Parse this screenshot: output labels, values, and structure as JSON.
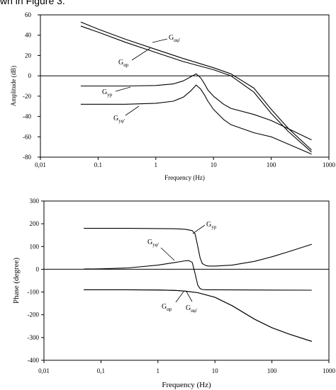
{
  "caption": "wn in Figure 3.",
  "chart_data": [
    {
      "type": "line",
      "title": "",
      "xlabel": "Frequency (Hz)",
      "ylabel": "Amplitude (dB)",
      "xscale": "log",
      "xlim": [
        0.01,
        1000
      ],
      "ylim": [
        -80,
        60
      ],
      "xticks": [
        "0,01",
        "0.1",
        "1",
        "10",
        "100",
        "1000"
      ],
      "yticks": [
        "60",
        "40",
        "20",
        "0",
        "-20",
        "-40",
        "-60",
        "-80"
      ],
      "grid": false,
      "series": [
        {
          "name": "Gαφ'",
          "annotation_main": "G",
          "annotation_sub": "αφ'",
          "x": [
            0.05,
            0.1,
            0.3,
            1,
            3,
            10,
            20,
            50,
            100,
            200,
            500
          ],
          "y": [
            53,
            46,
            36,
            26,
            17,
            8,
            2,
            -12,
            -33,
            -52,
            -73
          ]
        },
        {
          "name": "Gαp",
          "annotation_main": "G",
          "annotation_sub": "αp",
          "x": [
            0.05,
            0.1,
            0.3,
            1,
            3,
            10,
            20,
            50,
            100,
            200,
            500
          ],
          "y": [
            49,
            43,
            33,
            23,
            14,
            6,
            0,
            -16,
            -37,
            -55,
            -75
          ]
        },
        {
          "name": "Gyp",
          "annotation_main": "G",
          "annotation_sub": "yp",
          "x": [
            0.05,
            0.3,
            1,
            2,
            3,
            4,
            5,
            6,
            7,
            8,
            10,
            15,
            20,
            50,
            100,
            500
          ],
          "y": [
            -10,
            -10,
            -9.5,
            -8,
            -5,
            -1,
            2,
            -2,
            -8,
            -14,
            -20,
            -28,
            -32,
            -38,
            -44,
            -63
          ]
        },
        {
          "name": "Gyφ'",
          "annotation_main": "G",
          "annotation_sub": "yφ'",
          "x": [
            0.05,
            0.3,
            1,
            2,
            3,
            4,
            5,
            6,
            7,
            8,
            10,
            15,
            20,
            50,
            100,
            500
          ],
          "y": [
            -28,
            -28,
            -27,
            -25,
            -21,
            -15,
            -9,
            -13,
            -19,
            -25,
            -33,
            -43,
            -48,
            -56,
            -60,
            -77
          ]
        }
      ]
    },
    {
      "type": "line",
      "title": "",
      "xlabel": "Frequency (Hz)",
      "ylabel": "Phase (degree)",
      "xscale": "log",
      "xlim": [
        0.01,
        1000
      ],
      "ylim": [
        -400,
        300
      ],
      "xticks": [
        "0,01",
        "0,1",
        "1",
        "10",
        "100",
        "1000"
      ],
      "yticks": [
        "300",
        "200",
        "100",
        "0",
        "-100",
        "-200",
        "-300",
        "-400"
      ],
      "grid": false,
      "series": [
        {
          "name": "Gyp",
          "annotation_main": "G",
          "annotation_sub": "yp",
          "x": [
            0.05,
            0.3,
            1,
            2,
            3,
            4,
            4.5,
            5,
            5.5,
            6,
            7,
            8,
            10,
            20,
            50,
            100,
            200,
            500
          ],
          "y": [
            180,
            180,
            179,
            178,
            176,
            170,
            155,
            100,
            50,
            25,
            16,
            14,
            14,
            18,
            35,
            55,
            78,
            110
          ]
        },
        {
          "name": "Gyφ'",
          "annotation_main": "G",
          "annotation_sub": "yφ'",
          "x": [
            0.05,
            0.1,
            0.3,
            1,
            2,
            3,
            3.5,
            4,
            4.5,
            5,
            5.5,
            6,
            7,
            10,
            50,
            500
          ],
          "y": [
            1,
            2,
            6,
            18,
            30,
            37,
            38,
            30,
            -20,
            -70,
            -85,
            -89,
            -90,
            -90,
            -91,
            -92
          ]
        },
        {
          "name": "Gαp",
          "annotation_main": "G",
          "annotation_sub": "αp",
          "x": [
            0.05,
            0.3,
            1,
            2,
            3,
            5,
            10,
            20,
            50,
            100,
            200,
            500
          ],
          "y": [
            -90,
            -90,
            -91,
            -93,
            -96,
            -103,
            -123,
            -160,
            -220,
            -257,
            -285,
            -317
          ]
        },
        {
          "name": "Gαφ'",
          "annotation_main": "G",
          "annotation_sub": "αφ'",
          "x": [
            0.05,
            0.3,
            1,
            2,
            3,
            5,
            10,
            20,
            50,
            100,
            200,
            500
          ],
          "y": [
            -90,
            -90,
            -91,
            -93,
            -96,
            -103,
            -123,
            -160,
            -220,
            -257,
            -285,
            -317
          ]
        }
      ]
    }
  ]
}
